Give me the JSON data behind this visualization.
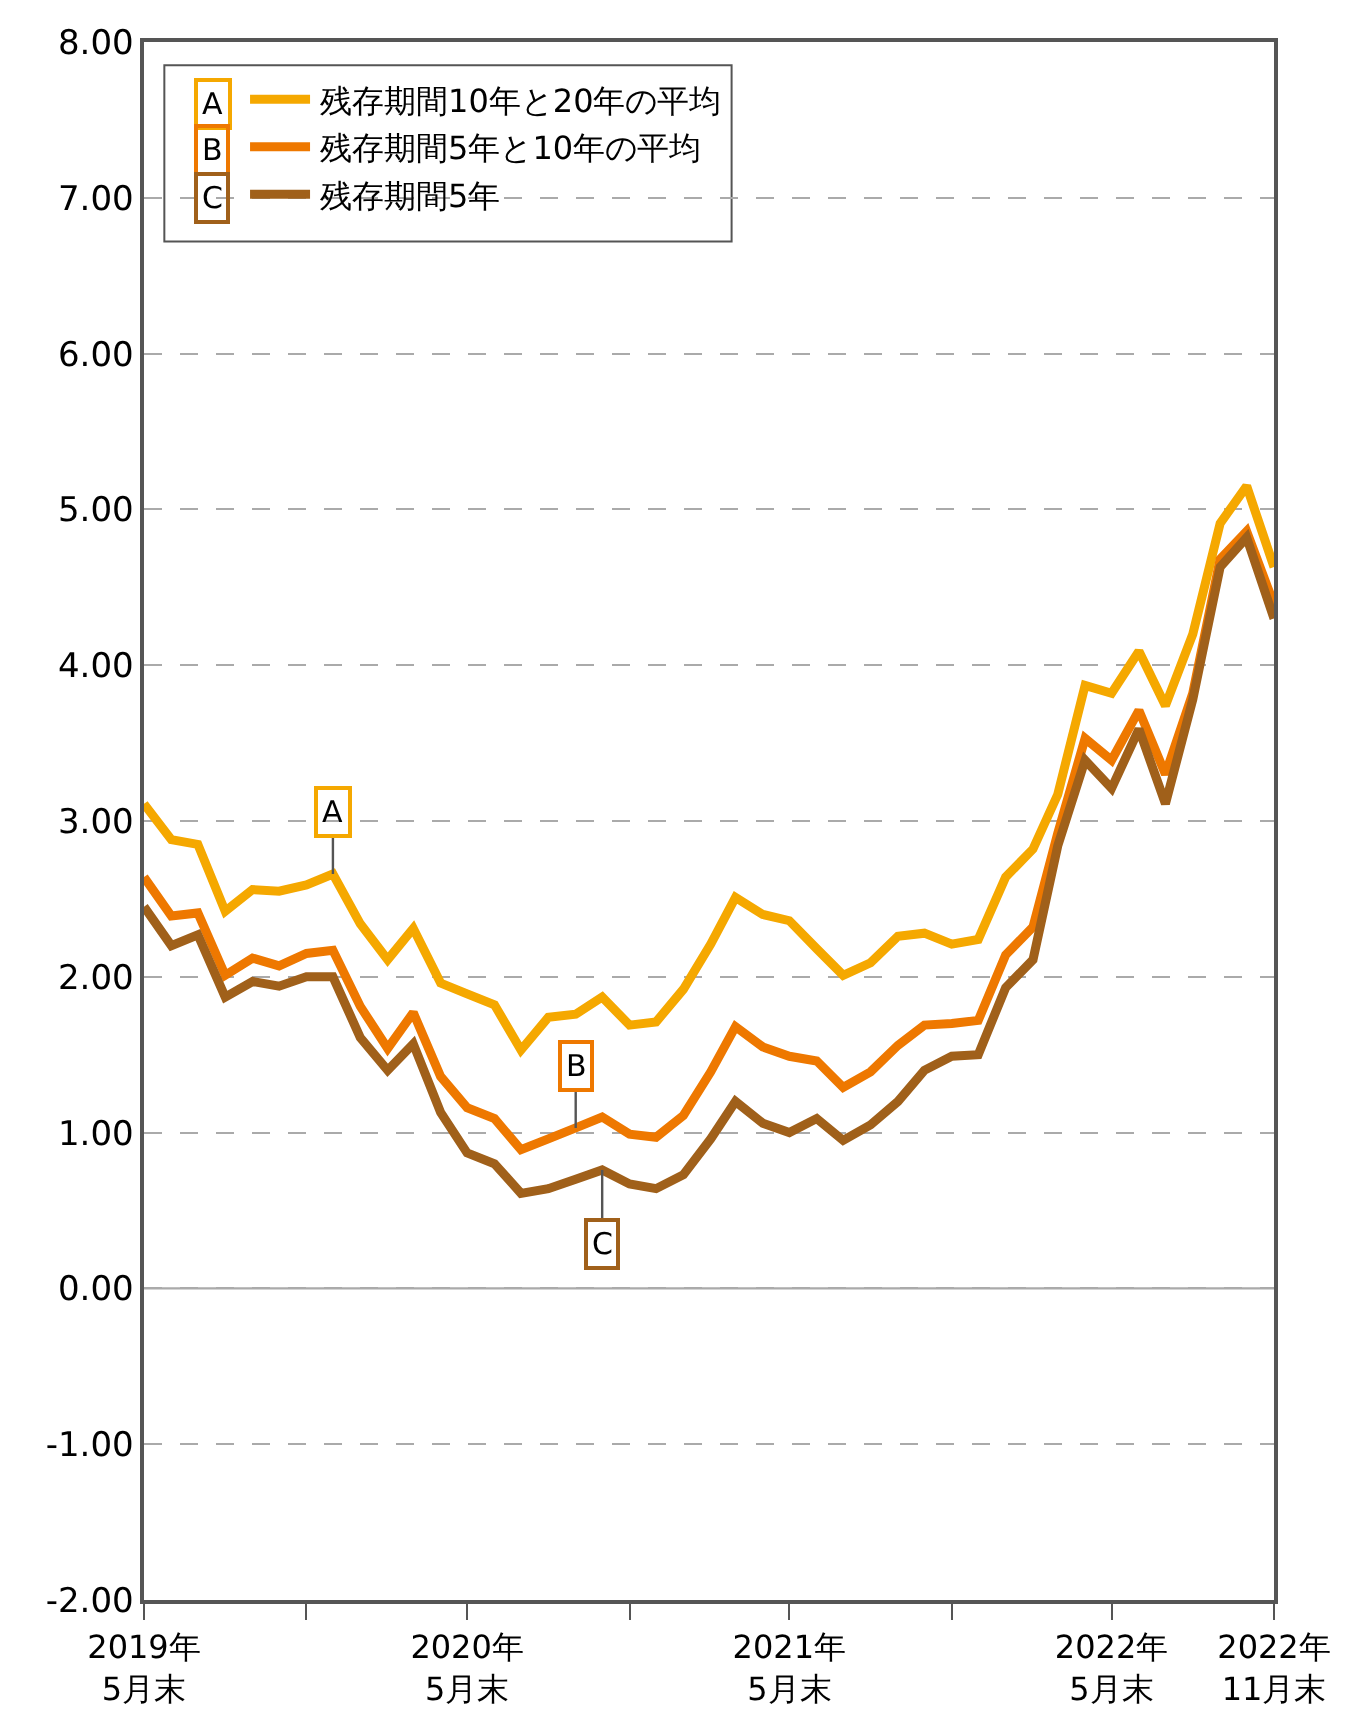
{
  "chart_data": {
    "type": "line",
    "x": [
      "2019-05",
      "2019-06",
      "2019-07",
      "2019-08",
      "2019-09",
      "2019-10",
      "2019-11",
      "2019-12",
      "2020-01",
      "2020-02",
      "2020-03",
      "2020-04",
      "2020-05",
      "2020-06",
      "2020-07",
      "2020-08",
      "2020-09",
      "2020-10",
      "2020-11",
      "2020-12",
      "2021-01",
      "2021-02",
      "2021-03",
      "2021-04",
      "2021-05",
      "2021-06",
      "2021-07",
      "2021-08",
      "2021-09",
      "2021-10",
      "2021-11",
      "2021-12",
      "2022-01",
      "2022-02",
      "2022-03",
      "2022-04",
      "2022-05",
      "2022-06",
      "2022-07",
      "2022-08",
      "2022-09",
      "2022-10",
      "2022-11"
    ],
    "series": [
      {
        "name": "残存期間10年と20年の平均",
        "color": "#f5a800",
        "values": [
          3.11,
          2.88,
          2.85,
          2.42,
          2.56,
          2.55,
          2.59,
          2.66,
          2.34,
          2.11,
          2.31,
          1.96,
          1.89,
          1.82,
          1.53,
          1.74,
          1.76,
          1.87,
          1.69,
          1.71,
          1.92,
          2.21,
          2.51,
          2.4,
          2.36,
          2.18,
          2.01,
          2.09,
          2.26,
          2.28,
          2.21,
          2.24,
          2.64,
          2.82,
          3.17,
          3.87,
          3.82,
          4.09,
          3.74,
          4.2,
          4.91,
          5.15,
          4.63
        ]
      },
      {
        "name": "残存期間5年と10年の平均",
        "color": "#ee7800",
        "values": [
          2.64,
          2.39,
          2.41,
          2.01,
          2.12,
          2.07,
          2.15,
          2.17,
          1.81,
          1.54,
          1.77,
          1.36,
          1.16,
          1.09,
          0.89,
          0.96,
          1.03,
          1.1,
          0.99,
          0.97,
          1.11,
          1.39,
          1.68,
          1.55,
          1.49,
          1.46,
          1.29,
          1.39,
          1.56,
          1.69,
          1.7,
          1.72,
          2.14,
          2.32,
          2.92,
          3.53,
          3.39,
          3.71,
          3.3,
          3.82,
          4.68,
          4.86,
          4.39
        ]
      },
      {
        "name": "残存期間5年",
        "color": "#a0601a",
        "values": [
          2.45,
          2.2,
          2.27,
          1.87,
          1.97,
          1.94,
          2.0,
          2.0,
          1.61,
          1.4,
          1.57,
          1.13,
          0.87,
          0.8,
          0.61,
          0.64,
          0.7,
          0.76,
          0.67,
          0.64,
          0.73,
          0.96,
          1.2,
          1.06,
          1.0,
          1.09,
          0.95,
          1.05,
          1.2,
          1.4,
          1.49,
          1.5,
          1.93,
          2.11,
          2.84,
          3.39,
          3.21,
          3.59,
          3.11,
          3.78,
          4.63,
          4.82,
          4.3
        ]
      }
    ],
    "annotations": [
      {
        "text": "A",
        "x": "2019-12",
        "y": 2.66
      },
      {
        "text": "B",
        "x": "2020-09",
        "y": 1.03
      },
      {
        "text": "C",
        "x": "2020-10",
        "y": 0.76
      }
    ],
    "xlim": [
      "2019-05",
      "2022-11"
    ],
    "xticks": [
      {
        "value": "2019-05",
        "label": "2019年\n5月末"
      },
      {
        "value": "2019-11",
        "label": null
      },
      {
        "value": "2020-05",
        "label": "2020年\n5月末"
      },
      {
        "value": "2020-11",
        "label": null
      },
      {
        "value": "2021-05",
        "label": "2021年\n5月末"
      },
      {
        "value": "2021-11",
        "label": null
      },
      {
        "value": "2022-05",
        "label": "2022年\n5月末"
      },
      {
        "value": "2022-11",
        "label": "2022年\n11月末"
      }
    ],
    "ylim": [
      -2,
      8
    ],
    "yticks": [
      {
        "value": -2,
        "label": "-2.00"
      },
      {
        "value": -1,
        "label": "-1.00"
      },
      {
        "value": 0,
        "label": "0.00"
      },
      {
        "value": 1,
        "label": "1.00"
      },
      {
        "value": 2,
        "label": "2.00"
      },
      {
        "value": 3,
        "label": "3.00"
      },
      {
        "value": 4,
        "label": "4.00"
      },
      {
        "value": 5,
        "label": "5.00"
      },
      {
        "value": 6,
        "label": "6.00"
      },
      {
        "value": 7,
        "label": "7.00"
      },
      {
        "value": 8,
        "label": "8.00"
      }
    ],
    "ref_lines": [
      {
        "axis": "y",
        "value": 0,
        "color": "#aaaaaa",
        "line_style": "solid"
      }
    ],
    "grid": "y",
    "line_style": "solid",
    "marker": "none",
    "legend": "top left"
  }
}
